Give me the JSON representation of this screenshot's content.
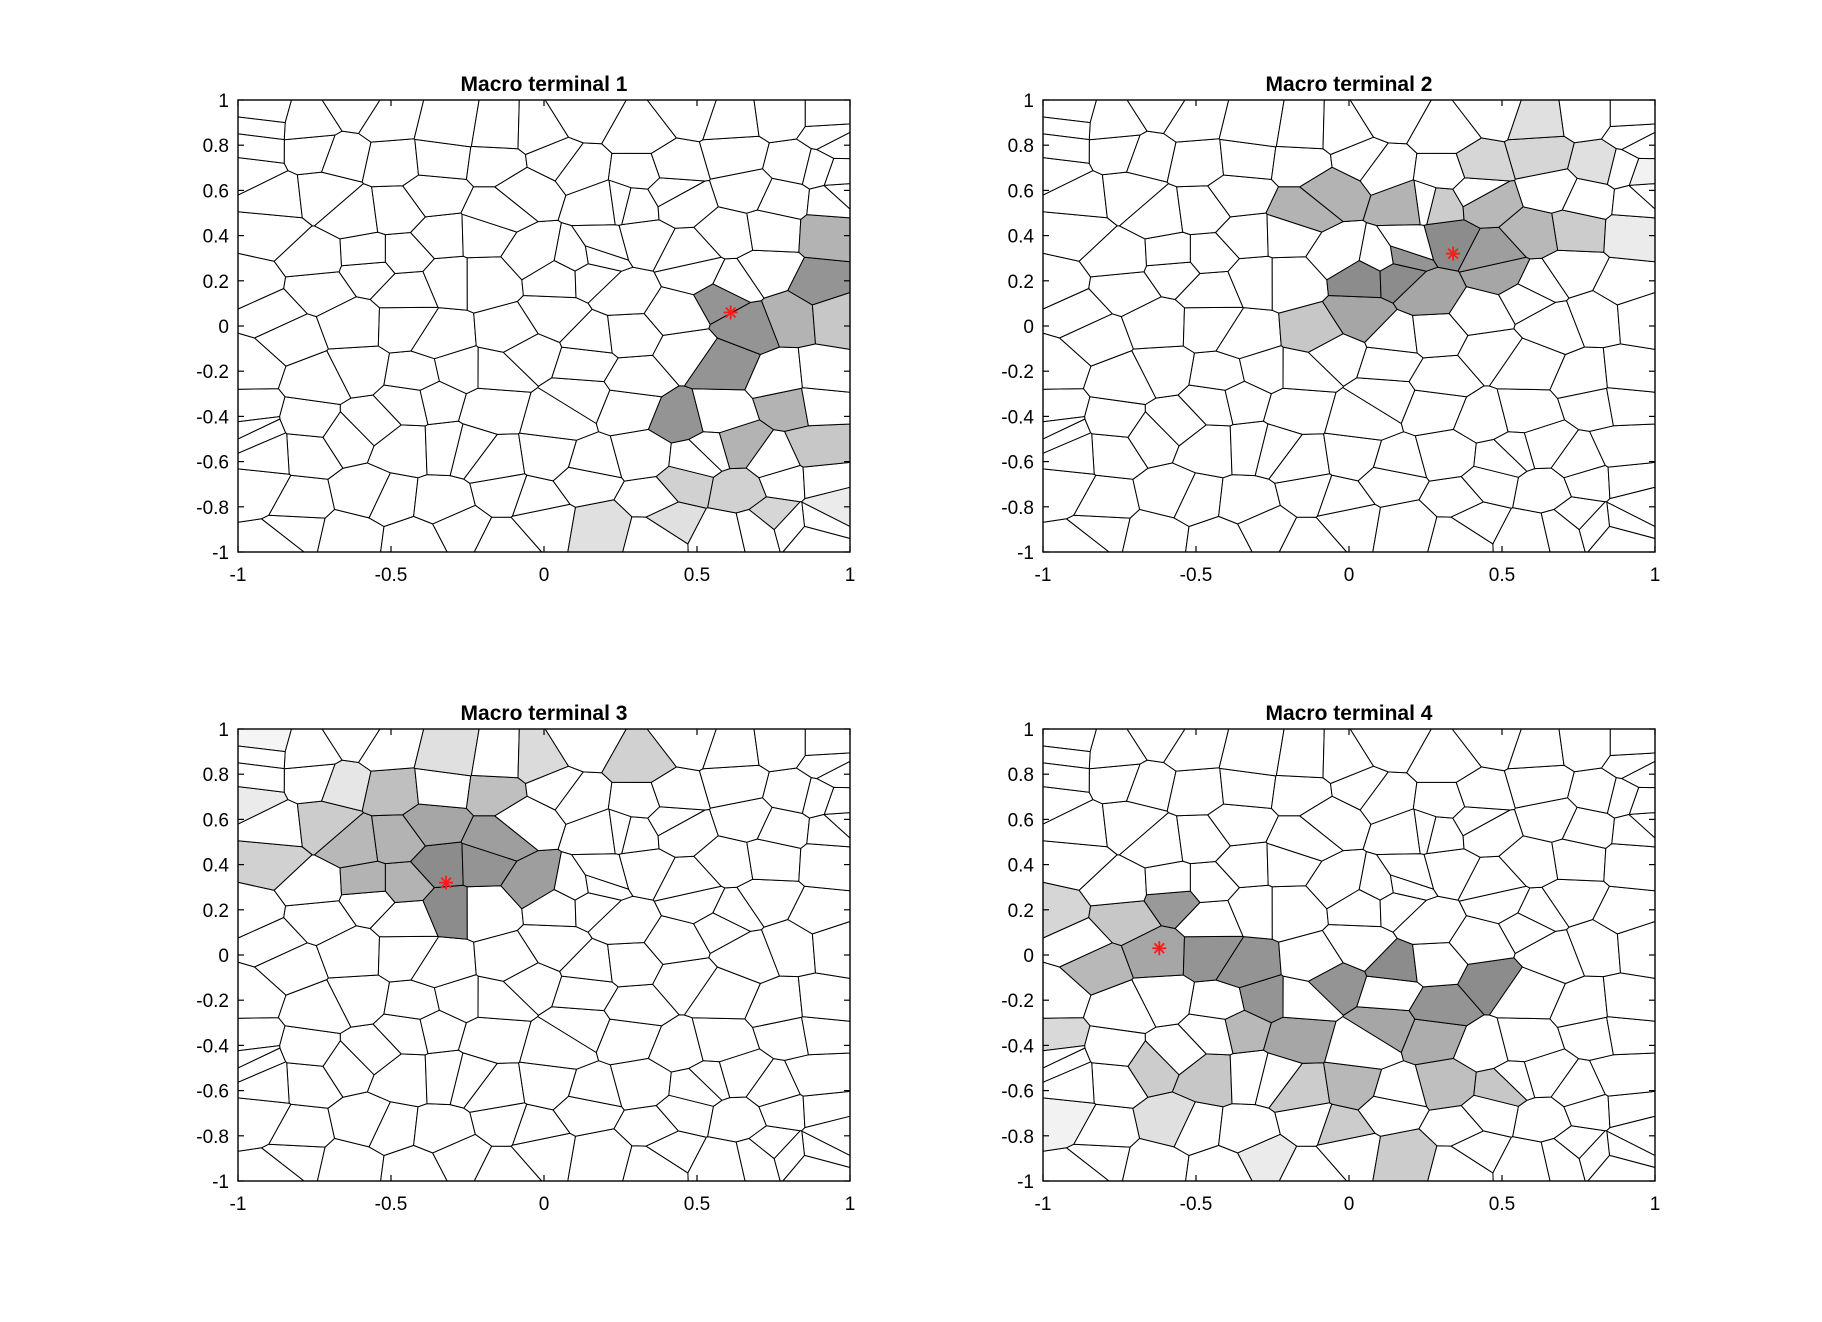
{
  "chart_data": [
    {
      "type": "heatmap",
      "title": "Macro terminal 1",
      "xlim": [
        -1,
        1
      ],
      "ylim": [
        -1,
        1
      ],
      "xticks": [
        "-1",
        "-0.5",
        "0",
        "0.5",
        "1"
      ],
      "yticks": [
        "1",
        "0.8",
        "0.6",
        "0.4",
        "0.2",
        "0",
        "-0.2",
        "-0.4",
        "-0.6",
        "-0.8",
        "-1"
      ],
      "terminal": {
        "x": 0.61,
        "y": 0.06,
        "marker": "*",
        "color": "#ff0000"
      },
      "shaded_cells": [
        {
          "x": 0.66,
          "y": 0.11,
          "level": 0.42
        },
        {
          "x": 0.82,
          "y": 0.16,
          "level": 0.42
        },
        {
          "x": 0.64,
          "y": -0.08,
          "level": 0.42
        },
        {
          "x": 0.58,
          "y": -0.28,
          "level": 0.42
        },
        {
          "x": 0.4,
          "y": -0.39,
          "level": 0.42
        },
        {
          "x": 0.48,
          "y": -0.42,
          "level": 0.4
        },
        {
          "x": 0.85,
          "y": -0.05,
          "level": 0.3
        },
        {
          "x": 0.96,
          "y": 0.32,
          "level": 0.3
        },
        {
          "x": 0.82,
          "y": -0.32,
          "level": 0.3
        },
        {
          "x": 0.62,
          "y": -0.53,
          "level": 0.3
        },
        {
          "x": 0.83,
          "y": -0.55,
          "level": 0.22
        },
        {
          "x": 0.96,
          "y": 0.05,
          "level": 0.22
        },
        {
          "x": 0.48,
          "y": -0.76,
          "level": 0.18
        },
        {
          "x": 0.66,
          "y": -0.78,
          "level": 0.18
        },
        {
          "x": 0.78,
          "y": -0.8,
          "level": 0.16
        },
        {
          "x": 0.96,
          "y": -0.58,
          "level": 0.1
        },
        {
          "x": 0.2,
          "y": -0.9,
          "level": 0.12
        },
        {
          "x": 0.48,
          "y": -0.93,
          "level": 0.12
        },
        {
          "x": 0.88,
          "y": -0.8,
          "level": 0.08
        },
        {
          "x": 0.97,
          "y": -0.86,
          "level": 0.05
        }
      ]
    },
    {
      "type": "heatmap",
      "title": "Macro terminal 2",
      "xlim": [
        -1,
        1
      ],
      "ylim": [
        -1,
        1
      ],
      "xticks": [
        "-1",
        "-0.5",
        "0",
        "0.5",
        "1"
      ],
      "yticks": [
        "1",
        "0.8",
        "0.6",
        "0.4",
        "0.2",
        "0",
        "-0.2",
        "-0.4",
        "-0.6",
        "-0.8",
        "-1"
      ],
      "terminal": {
        "x": 0.34,
        "y": 0.32,
        "marker": "*",
        "color": "#ff0000"
      },
      "shaded_cells": [
        {
          "x": 0.33,
          "y": 0.37,
          "level": 0.45
        },
        {
          "x": 0.18,
          "y": 0.24,
          "level": 0.45
        },
        {
          "x": 0.1,
          "y": 0.22,
          "level": 0.45
        },
        {
          "x": 0.26,
          "y": 0.26,
          "level": 0.42
        },
        {
          "x": 0.42,
          "y": 0.28,
          "level": 0.38
        },
        {
          "x": 0.5,
          "y": 0.22,
          "level": 0.35
        },
        {
          "x": 0.3,
          "y": 0.12,
          "level": 0.35
        },
        {
          "x": 0.08,
          "y": 0.1,
          "level": 0.35
        },
        {
          "x": -0.06,
          "y": 0.15,
          "level": 0.3
        },
        {
          "x": -0.1,
          "y": 0.44,
          "level": 0.3
        },
        {
          "x": 0.05,
          "y": 0.5,
          "level": 0.3
        },
        {
          "x": 0.22,
          "y": 0.45,
          "level": 0.3
        },
        {
          "x": 0.42,
          "y": 0.46,
          "level": 0.28
        },
        {
          "x": 0.56,
          "y": 0.4,
          "level": 0.28
        },
        {
          "x": -0.17,
          "y": 0.0,
          "level": 0.22
        },
        {
          "x": 0.0,
          "y": 0.62,
          "level": 0.2
        },
        {
          "x": 0.3,
          "y": 0.58,
          "level": 0.2
        },
        {
          "x": 0.72,
          "y": 0.38,
          "level": 0.2
        },
        {
          "x": 0.42,
          "y": 0.72,
          "level": 0.16
        },
        {
          "x": 0.6,
          "y": 0.74,
          "level": 0.16
        },
        {
          "x": 0.78,
          "y": 0.68,
          "level": 0.12
        },
        {
          "x": 0.58,
          "y": 0.94,
          "level": 0.12
        },
        {
          "x": 0.92,
          "y": 0.46,
          "level": 0.08
        },
        {
          "x": 0.95,
          "y": 0.72,
          "level": 0.05
        }
      ]
    },
    {
      "type": "heatmap",
      "title": "Macro terminal 3",
      "xlim": [
        -1,
        1
      ],
      "ylim": [
        -1,
        1
      ],
      "xticks": [
        "-1",
        "-0.5",
        "0",
        "0.5",
        "1"
      ],
      "yticks": [
        "1",
        "0.8",
        "0.6",
        "0.4",
        "0.2",
        "0",
        "-0.2",
        "-0.4",
        "-0.6",
        "-0.8",
        "-1"
      ],
      "terminal": {
        "x": -0.32,
        "y": 0.32,
        "marker": "*",
        "color": "#ff0000"
      },
      "shaded_cells": [
        {
          "x": -0.32,
          "y": 0.22,
          "level": 0.45
        },
        {
          "x": -0.3,
          "y": 0.38,
          "level": 0.45
        },
        {
          "x": -0.15,
          "y": 0.4,
          "level": 0.42
        },
        {
          "x": -0.06,
          "y": 0.28,
          "level": 0.38
        },
        {
          "x": -0.18,
          "y": 0.6,
          "level": 0.38
        },
        {
          "x": -0.32,
          "y": 0.6,
          "level": 0.35
        },
        {
          "x": -0.48,
          "y": 0.55,
          "level": 0.3
        },
        {
          "x": -0.62,
          "y": 0.55,
          "level": 0.28
        },
        {
          "x": -0.6,
          "y": 0.3,
          "level": 0.3
        },
        {
          "x": -0.44,
          "y": 0.34,
          "level": 0.3
        },
        {
          "x": -0.06,
          "y": 0.7,
          "level": 0.25
        },
        {
          "x": -0.42,
          "y": 0.74,
          "level": 0.25
        },
        {
          "x": -0.78,
          "y": 0.5,
          "level": 0.2
        },
        {
          "x": -0.86,
          "y": 0.42,
          "level": 0.18
        },
        {
          "x": 0.22,
          "y": 0.82,
          "level": 0.18
        },
        {
          "x": 0.0,
          "y": 0.88,
          "level": 0.14
        },
        {
          "x": -0.3,
          "y": 0.9,
          "level": 0.12
        },
        {
          "x": -0.58,
          "y": 0.82,
          "level": 0.1
        },
        {
          "x": -0.92,
          "y": 0.7,
          "level": 0.08
        },
        {
          "x": -0.95,
          "y": 0.94,
          "level": 0.04
        }
      ]
    },
    {
      "type": "heatmap",
      "title": "Macro terminal 4",
      "xlim": [
        -1,
        1
      ],
      "ylim": [
        -1,
        1
      ],
      "xticks": [
        "-1",
        "-0.5",
        "0",
        "0.5",
        "1"
      ],
      "yticks": [
        "1",
        "0.8",
        "0.6",
        "0.4",
        "0.2",
        "0",
        "-0.2",
        "-0.4",
        "-0.6",
        "-0.8",
        "-1"
      ],
      "terminal": {
        "x": -0.62,
        "y": 0.03,
        "marker": "*",
        "color": "#ff0000"
      },
      "shaded_cells": [
        {
          "x": -0.5,
          "y": 0.05,
          "level": 0.42
        },
        {
          "x": -0.4,
          "y": -0.12,
          "level": 0.42
        },
        {
          "x": -0.22,
          "y": -0.15,
          "level": 0.42
        },
        {
          "x": 0.02,
          "y": -0.1,
          "level": 0.42
        },
        {
          "x": 0.2,
          "y": -0.1,
          "level": 0.45
        },
        {
          "x": 0.4,
          "y": -0.05,
          "level": 0.45
        },
        {
          "x": 0.3,
          "y": -0.2,
          "level": 0.42
        },
        {
          "x": -0.52,
          "y": 0.22,
          "level": 0.4
        },
        {
          "x": -0.62,
          "y": -0.08,
          "level": 0.35
        },
        {
          "x": -0.1,
          "y": -0.35,
          "level": 0.35
        },
        {
          "x": 0.1,
          "y": -0.33,
          "level": 0.35
        },
        {
          "x": 0.22,
          "y": -0.38,
          "level": 0.32
        },
        {
          "x": -0.78,
          "y": -0.1,
          "level": 0.28
        },
        {
          "x": -0.35,
          "y": -0.38,
          "level": 0.28
        },
        {
          "x": -0.2,
          "y": -0.45,
          "level": 0.28
        },
        {
          "x": 0.05,
          "y": -0.55,
          "level": 0.28
        },
        {
          "x": 0.3,
          "y": -0.6,
          "level": 0.25
        },
        {
          "x": 0.42,
          "y": -0.62,
          "level": 0.22
        },
        {
          "x": -0.8,
          "y": 0.1,
          "level": 0.22
        },
        {
          "x": -0.88,
          "y": 0.28,
          "level": 0.16
        },
        {
          "x": -0.7,
          "y": -0.5,
          "level": 0.2
        },
        {
          "x": -0.4,
          "y": -0.65,
          "level": 0.22
        },
        {
          "x": -0.25,
          "y": -0.68,
          "level": 0.2
        },
        {
          "x": 0.0,
          "y": -0.75,
          "level": 0.2
        },
        {
          "x": 0.15,
          "y": -0.8,
          "level": 0.2
        },
        {
          "x": -0.88,
          "y": -0.38,
          "level": 0.15
        },
        {
          "x": -0.85,
          "y": -0.1,
          "level": 0.12
        },
        {
          "x": -0.58,
          "y": -0.75,
          "level": 0.12
        },
        {
          "x": -0.3,
          "y": -0.88,
          "level": 0.08
        },
        {
          "x": -0.9,
          "y": -0.75,
          "level": 0.05
        }
      ]
    }
  ]
}
